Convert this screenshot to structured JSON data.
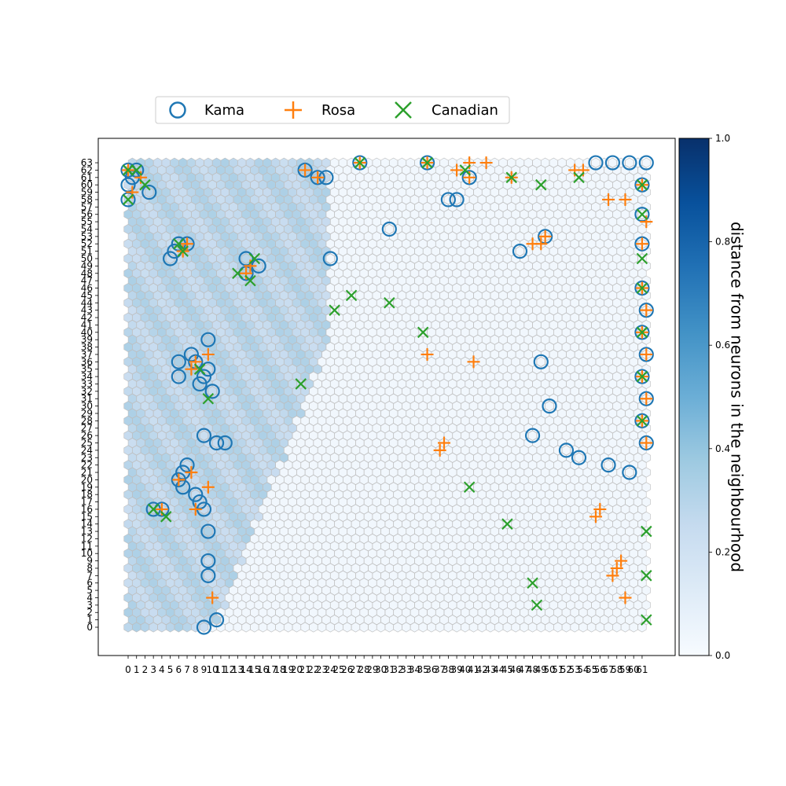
{
  "chart_data": {
    "type": "scatter",
    "subtype": "self-organizing-map-hexagonal-distance-map",
    "grid": {
      "columns": 62,
      "rows": 64
    },
    "x_ticks": [
      "0",
      "1",
      "2",
      "3",
      "4",
      "5",
      "6",
      "7",
      "8",
      "9",
      "10",
      "11",
      "12",
      "13",
      "14",
      "15",
      "16",
      "17",
      "18",
      "19",
      "20",
      "21",
      "22",
      "23",
      "24",
      "25",
      "26",
      "27",
      "28",
      "29",
      "30",
      "31",
      "32",
      "33",
      "34",
      "35",
      "36",
      "37",
      "38",
      "39",
      "40",
      "41",
      "42",
      "43",
      "44",
      "45",
      "46",
      "47",
      "48",
      "49",
      "50",
      "51",
      "52",
      "53",
      "54",
      "55",
      "56",
      "57",
      "58",
      "59",
      "60",
      "61"
    ],
    "y_ticks": [
      "0",
      "1",
      "2",
      "3",
      "4",
      "5",
      "6",
      "7",
      "8",
      "9",
      "10",
      "11",
      "12",
      "13",
      "14",
      "15",
      "16",
      "17",
      "18",
      "19",
      "20",
      "21",
      "22",
      "23",
      "24",
      "25",
      "26",
      "27",
      "28",
      "29",
      "30",
      "31",
      "32",
      "33",
      "34",
      "35",
      "36",
      "37",
      "38",
      "39",
      "40",
      "41",
      "42",
      "43",
      "44",
      "45",
      "46",
      "47",
      "48",
      "49",
      "50",
      "51",
      "52",
      "53",
      "54",
      "55",
      "56",
      "57",
      "58",
      "59",
      "60",
      "61",
      "62",
      "63"
    ],
    "legend": {
      "placement": "top-center, above plot, 3 columns",
      "entries": [
        {
          "label": "Kama",
          "marker": "circle",
          "color": "#1f77b4"
        },
        {
          "label": "Rosa",
          "marker": "plus",
          "color": "#ff7f0e"
        },
        {
          "label": "Canadian",
          "marker": "x",
          "color": "#2ca02c"
        }
      ]
    },
    "colorbar": {
      "label": "distance from neurons in the neighbourhood",
      "colormap": "Blues",
      "range": [
        0,
        1
      ],
      "ticks": [
        "0.0",
        "0.2",
        "0.4",
        "0.6",
        "0.8",
        "1.0"
      ]
    },
    "distance_map_summary": "left region (cols 0-24, rows 0-63) shows medium distance ~0.2-0.35; remainder near 0",
    "series": [
      {
        "name": "Kama",
        "color": "#1f77b4",
        "points": [
          [
            0,
            62
          ],
          [
            0,
            61
          ],
          [
            1,
            62
          ],
          [
            0,
            60
          ],
          [
            0,
            58
          ],
          [
            2,
            59
          ],
          [
            21,
            62
          ],
          [
            22,
            61
          ],
          [
            23,
            61
          ],
          [
            5,
            51
          ],
          [
            6,
            52
          ],
          [
            7,
            52
          ],
          [
            5,
            50
          ],
          [
            14,
            50
          ],
          [
            15,
            49
          ],
          [
            14,
            48
          ],
          [
            9,
            39
          ],
          [
            7,
            37
          ],
          [
            6,
            36
          ],
          [
            8,
            36
          ],
          [
            9,
            35
          ],
          [
            6,
            34
          ],
          [
            8,
            33
          ],
          [
            9,
            34
          ],
          [
            10,
            32
          ],
          [
            9,
            26
          ],
          [
            10,
            25
          ],
          [
            11,
            25
          ],
          [
            7,
            22
          ],
          [
            6,
            21
          ],
          [
            6,
            20
          ],
          [
            6,
            19
          ],
          [
            8,
            18
          ],
          [
            8,
            17
          ],
          [
            9,
            16
          ],
          [
            4,
            16
          ],
          [
            3,
            16
          ],
          [
            9,
            13
          ],
          [
            9,
            9
          ],
          [
            9,
            7
          ],
          [
            10,
            1
          ],
          [
            9,
            0
          ],
          [
            27,
            63
          ],
          [
            35,
            63
          ],
          [
            38,
            58
          ],
          [
            31,
            54
          ],
          [
            24,
            50
          ],
          [
            39,
            58
          ],
          [
            40,
            61
          ],
          [
            46,
            51
          ],
          [
            49,
            53
          ],
          [
            49,
            36
          ],
          [
            50,
            30
          ],
          [
            48,
            26
          ],
          [
            52,
            24
          ],
          [
            53,
            23
          ],
          [
            57,
            22
          ],
          [
            59,
            21
          ],
          [
            55,
            63
          ],
          [
            57,
            63
          ],
          [
            59,
            63
          ],
          [
            61,
            63
          ],
          [
            61,
            60
          ],
          [
            61,
            56
          ],
          [
            61,
            52
          ],
          [
            61,
            46
          ],
          [
            61,
            43
          ],
          [
            61,
            40
          ],
          [
            61,
            37
          ],
          [
            61,
            34
          ],
          [
            61,
            31
          ],
          [
            61,
            28
          ],
          [
            61,
            25
          ]
        ]
      },
      {
        "name": "Rosa",
        "color": "#ff7f0e",
        "points": [
          [
            0,
            62
          ],
          [
            1,
            61
          ],
          [
            0,
            59
          ],
          [
            6,
            51
          ],
          [
            7,
            52
          ],
          [
            14,
            49
          ],
          [
            14,
            48
          ],
          [
            8,
            36
          ],
          [
            7,
            35
          ],
          [
            9,
            37
          ],
          [
            6,
            20
          ],
          [
            7,
            21
          ],
          [
            9,
            19
          ],
          [
            8,
            16
          ],
          [
            4,
            16
          ],
          [
            10,
            4
          ],
          [
            21,
            62
          ],
          [
            22,
            61
          ],
          [
            27,
            63
          ],
          [
            35,
            63
          ],
          [
            40,
            61
          ],
          [
            45,
            61
          ],
          [
            53,
            62
          ],
          [
            54,
            62
          ],
          [
            49,
            53
          ],
          [
            49,
            52
          ],
          [
            48,
            52
          ],
          [
            37,
            25
          ],
          [
            37,
            24
          ],
          [
            35,
            37
          ],
          [
            41,
            36
          ],
          [
            39,
            62
          ],
          [
            40,
            63
          ],
          [
            42,
            63
          ],
          [
            61,
            60
          ],
          [
            61,
            55
          ],
          [
            61,
            52
          ],
          [
            61,
            46
          ],
          [
            61,
            43
          ],
          [
            61,
            40
          ],
          [
            61,
            37
          ],
          [
            61,
            34
          ],
          [
            61,
            31
          ],
          [
            61,
            28
          ],
          [
            61,
            25
          ],
          [
            57,
            58
          ],
          [
            59,
            58
          ],
          [
            56,
            16
          ],
          [
            55,
            15
          ],
          [
            58,
            9
          ],
          [
            58,
            8
          ],
          [
            57,
            7
          ],
          [
            59,
            4
          ]
        ]
      },
      {
        "name": "Canadian",
        "color": "#2ca02c",
        "points": [
          [
            0,
            62
          ],
          [
            1,
            62
          ],
          [
            2,
            60
          ],
          [
            0,
            58
          ],
          [
            6,
            52
          ],
          [
            6,
            51
          ],
          [
            15,
            50
          ],
          [
            13,
            48
          ],
          [
            14,
            47
          ],
          [
            3,
            16
          ],
          [
            4,
            15
          ],
          [
            8,
            35
          ],
          [
            9,
            31
          ],
          [
            20,
            33
          ],
          [
            24,
            43
          ],
          [
            26,
            45
          ],
          [
            31,
            44
          ],
          [
            35,
            40
          ],
          [
            40,
            19
          ],
          [
            45,
            14
          ],
          [
            48,
            6
          ],
          [
            48,
            3
          ],
          [
            27,
            63
          ],
          [
            35,
            63
          ],
          [
            40,
            62
          ],
          [
            45,
            61
          ],
          [
            49,
            60
          ],
          [
            53,
            61
          ],
          [
            61,
            60
          ],
          [
            61,
            56
          ],
          [
            61,
            50
          ],
          [
            61,
            46
          ],
          [
            61,
            40
          ],
          [
            61,
            34
          ],
          [
            61,
            28
          ],
          [
            61,
            13
          ],
          [
            61,
            7
          ],
          [
            61,
            1
          ]
        ]
      }
    ]
  }
}
